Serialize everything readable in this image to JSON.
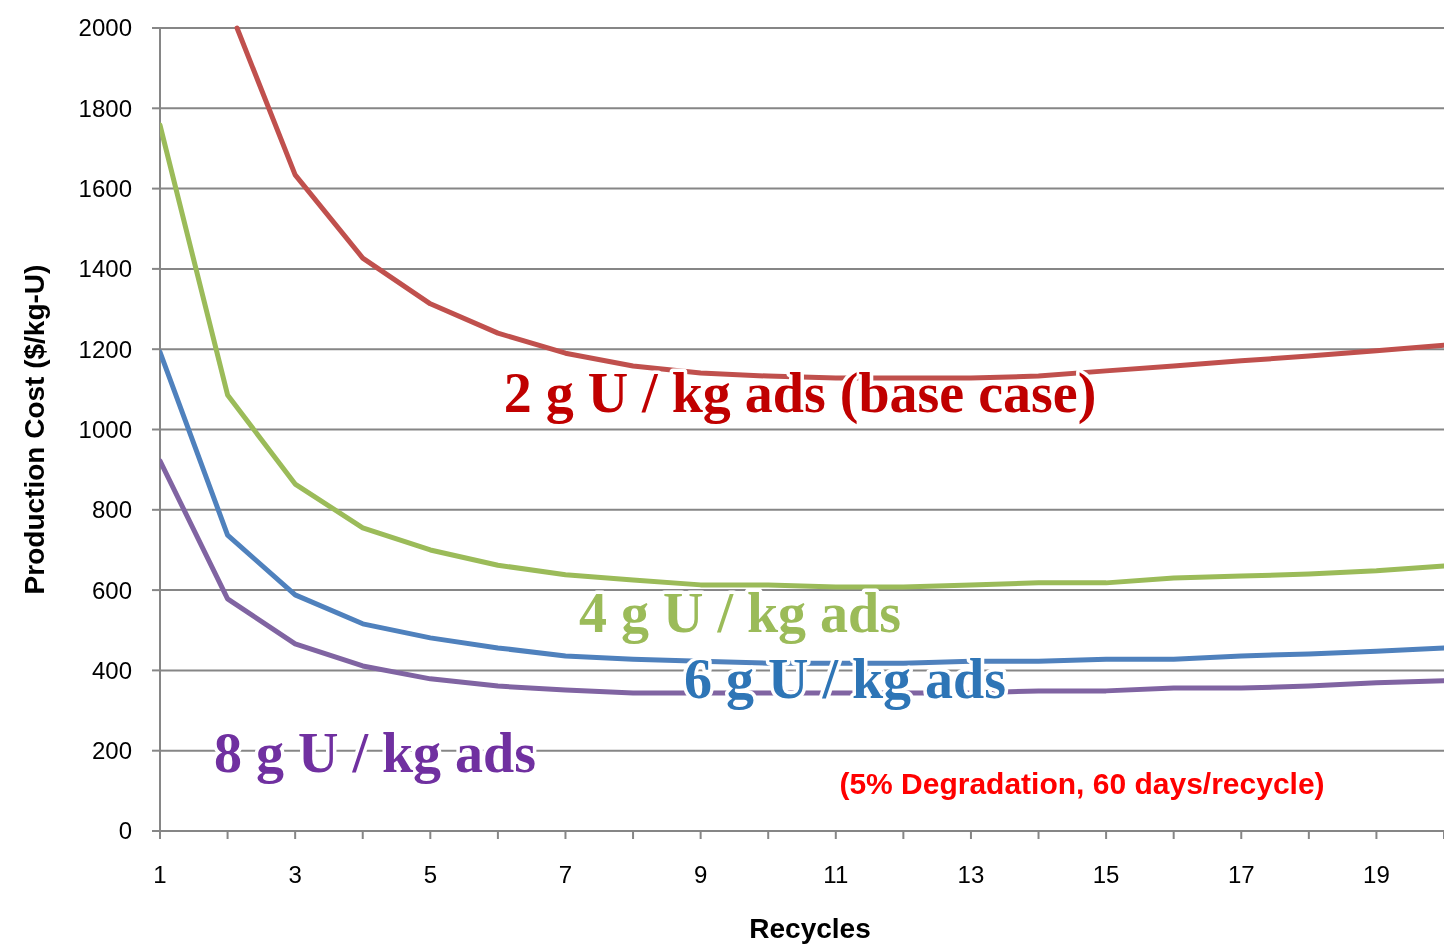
{
  "chart_data": {
    "type": "line",
    "xlabel": "Recycles",
    "ylabel": "Production Cost ($/kg-U)",
    "xlim": [
      1,
      20
    ],
    "xticks": [
      1,
      {
        "value": 2,
        "label": null
      },
      3,
      {
        "value": 4,
        "label": null
      },
      5,
      {
        "value": 6,
        "label": null
      },
      7,
      {
        "value": 8,
        "label": null
      },
      9,
      {
        "value": 10,
        "label": null
      },
      11,
      {
        "value": 12,
        "label": null
      },
      13,
      {
        "value": 14,
        "label": null
      },
      15,
      {
        "value": 16,
        "label": null
      },
      17,
      {
        "value": 18,
        "label": null
      },
      19,
      {
        "value": 20,
        "label": null
      }
    ],
    "ylim": [
      0,
      2000
    ],
    "yticks": [
      0,
      200,
      400,
      600,
      800,
      1000,
      1200,
      1400,
      1600,
      1800,
      2000
    ],
    "grid": "y",
    "marker": "none",
    "line_style": "solid",
    "series": [
      {
        "name": "2 g U / kg ads (base case)",
        "color": "#c0504d",
        "x": [
          2.14,
          3,
          4,
          5,
          6,
          7,
          8,
          9,
          10,
          11,
          12,
          13,
          14,
          15,
          16,
          17,
          18,
          19,
          20
        ],
        "values": [
          2000,
          1634,
          1427,
          1313,
          1240,
          1190,
          1158,
          1141,
          1133,
          1128,
          1128,
          1128,
          1133,
          1146,
          1158,
          1171,
          1183,
          1196,
          1210
        ]
      },
      {
        "name": "4 g U / kg ads",
        "color": "#9bbb59",
        "x": [
          1,
          2,
          3,
          4,
          5,
          6,
          7,
          8,
          9,
          10,
          11,
          12,
          13,
          14,
          15,
          16,
          17,
          18,
          19,
          20
        ],
        "values": [
          1758,
          1086,
          864,
          755,
          700,
          662,
          638,
          625,
          613,
          613,
          608,
          608,
          613,
          618,
          618,
          630,
          635,
          640,
          648,
          660
        ]
      },
      {
        "name": "6 g U / kg ads",
        "color": "#4f81bd",
        "x": [
          1,
          2,
          3,
          4,
          5,
          6,
          7,
          8,
          9,
          10,
          11,
          12,
          13,
          14,
          15,
          16,
          17,
          18,
          19,
          20
        ],
        "values": [
          1193,
          737,
          588,
          516,
          481,
          456,
          436,
          428,
          423,
          418,
          418,
          418,
          423,
          423,
          428,
          428,
          436,
          441,
          448,
          456
        ]
      },
      {
        "name": "8 g U / kg ads",
        "color": "#8064a2",
        "x": [
          1,
          2,
          3,
          4,
          5,
          6,
          7,
          8,
          9,
          10,
          11,
          12,
          13,
          14,
          15,
          16,
          17,
          18,
          19,
          20
        ],
        "values": [
          922,
          578,
          466,
          411,
          379,
          361,
          351,
          344,
          344,
          344,
          344,
          344,
          344,
          349,
          349,
          356,
          356,
          361,
          369,
          374
        ]
      }
    ],
    "annotations": [
      "(5% Degradation, 60 days/recycle)"
    ]
  }
}
